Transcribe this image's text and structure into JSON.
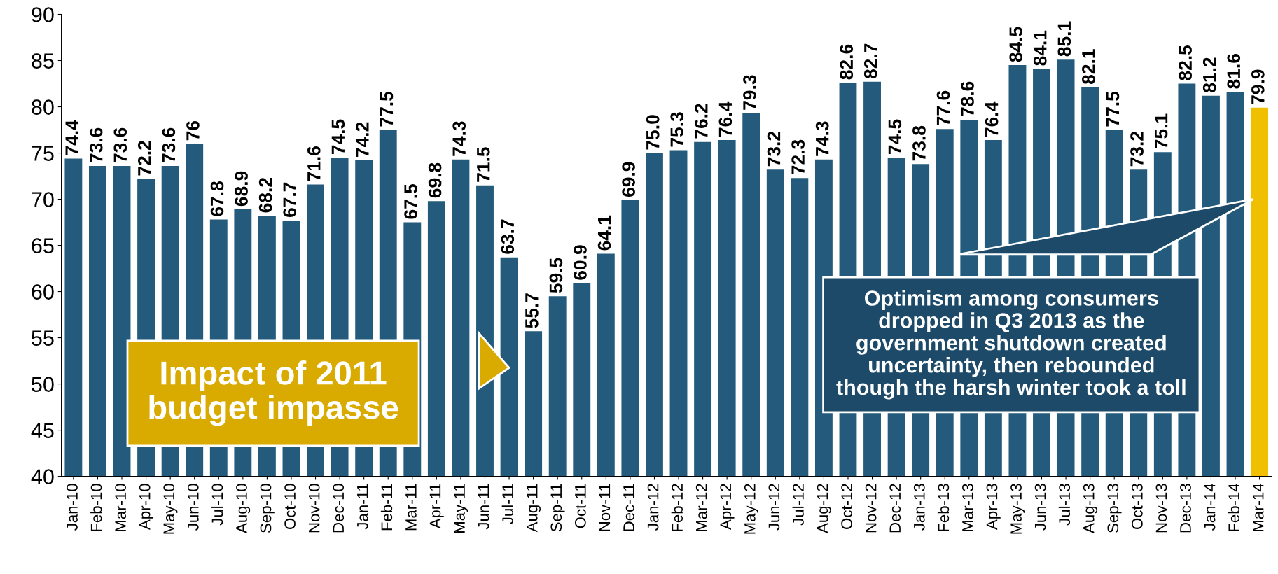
{
  "chart_data": {
    "type": "bar",
    "categories": [
      "Jan-10",
      "Feb-10",
      "Mar-10",
      "Apr-10",
      "May-10",
      "Jun-10",
      "Jul-10",
      "Aug-10",
      "Sep-10",
      "Oct-10",
      "Nov-10",
      "Dec-10",
      "Jan-11",
      "Feb-11",
      "Mar-11",
      "Apr-11",
      "May-11",
      "Jun-11",
      "Jul-11",
      "Aug-11",
      "Sep-11",
      "Oct-11",
      "Nov-11",
      "Dec-11",
      "Jan-12",
      "Feb-12",
      "Mar-12",
      "Apr-12",
      "May-12",
      "Jun-12",
      "Jul-12",
      "Aug-12",
      "Oct-12",
      "Nov-12",
      "Dec-12",
      "Jan-13",
      "Feb-13",
      "Mar-13",
      "Apr-13",
      "May-13",
      "Jun-13",
      "Jul-13",
      "Aug-13",
      "Sep-13",
      "Oct-13",
      "Nov-13",
      "Dec-13",
      "Jan-14",
      "Feb-14",
      "Mar-14"
    ],
    "values": [
      74.4,
      73.6,
      73.6,
      72.2,
      73.6,
      76,
      67.8,
      68.9,
      68.2,
      67.7,
      71.6,
      74.5,
      74.2,
      77.5,
      67.5,
      69.8,
      74.3,
      71.5,
      63.7,
      55.7,
      59.5,
      60.9,
      64.1,
      69.9,
      75.0,
      75.3,
      76.2,
      76.4,
      79.3,
      73.2,
      72.3,
      74.3,
      82.6,
      82.7,
      74.5,
      73.8,
      77.6,
      78.6,
      76.4,
      84.5,
      84.1,
      85.1,
      82.1,
      77.5,
      73.2,
      75.1,
      82.5,
      81.2,
      81.6,
      79.9
    ],
    "value_labels": [
      "74.4",
      "73.6",
      "73.6",
      "72.2",
      "73.6",
      "76",
      "67.8",
      "68.9",
      "68.2",
      "67.7",
      "71.6",
      "74.5",
      "74.2",
      "77.5",
      "67.5",
      "69.8",
      "74.3",
      "71.5",
      "63.7",
      "55.7",
      "59.5",
      "60.9",
      "64.1",
      "69.9",
      "75.0",
      "75.3",
      "76.2",
      "76.4",
      "79.3",
      "73.2",
      "72.3",
      "74.3",
      "82.6",
      "82.7",
      "74.5",
      "73.8",
      "77.6",
      "78.6",
      "76.4",
      "84.5",
      "84.1",
      "85.1",
      "82.1",
      "77.5",
      "73.2",
      "75.1",
      "82.5",
      "81.2",
      "81.6",
      "79.9"
    ],
    "colors": [
      "#245b7c",
      "#245b7c",
      "#245b7c",
      "#245b7c",
      "#245b7c",
      "#245b7c",
      "#245b7c",
      "#245b7c",
      "#245b7c",
      "#245b7c",
      "#245b7c",
      "#245b7c",
      "#245b7c",
      "#245b7c",
      "#245b7c",
      "#245b7c",
      "#245b7c",
      "#245b7c",
      "#245b7c",
      "#245b7c",
      "#245b7c",
      "#245b7c",
      "#245b7c",
      "#245b7c",
      "#245b7c",
      "#245b7c",
      "#245b7c",
      "#245b7c",
      "#245b7c",
      "#245b7c",
      "#245b7c",
      "#245b7c",
      "#245b7c",
      "#245b7c",
      "#245b7c",
      "#245b7c",
      "#245b7c",
      "#245b7c",
      "#245b7c",
      "#245b7c",
      "#245b7c",
      "#245b7c",
      "#245b7c",
      "#245b7c",
      "#245b7c",
      "#245b7c",
      "#245b7c",
      "#245b7c",
      "#245b7c",
      "#f0c000"
    ],
    "ylim": [
      40,
      90
    ],
    "yticks": [
      40,
      45,
      50,
      55,
      60,
      65,
      70,
      75,
      80,
      85,
      90
    ],
    "grid": false,
    "legend": false,
    "annotations": [
      "Impact of 2011\nbudget impasse",
      "Optimism among consumers\ndropped in Q3 2013 as the\ngovernment shutdown created\nuncertainty, then rebounded\nthough the harsh winter took a toll"
    ]
  }
}
